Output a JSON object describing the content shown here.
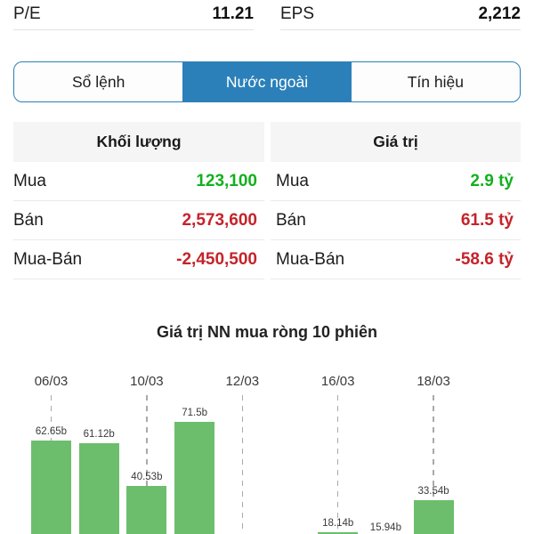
{
  "stats": {
    "pe": {
      "label": "P/E",
      "value": "11.21"
    },
    "eps": {
      "label": "EPS",
      "value": "2,212"
    }
  },
  "tabs": [
    {
      "label": "Sổ lệnh",
      "active": false
    },
    {
      "label": "Nước ngoài",
      "active": true
    },
    {
      "label": "Tín hiệu",
      "active": false
    }
  ],
  "foreign_table": {
    "volume": {
      "header": "Khối lượng",
      "rows": [
        {
          "label": "Mua",
          "value": "123,100",
          "color": "positive"
        },
        {
          "label": "Bán",
          "value": "2,573,600",
          "color": "negative"
        },
        {
          "label": "Mua-Bán",
          "value": "-2,450,500",
          "color": "negative"
        }
      ]
    },
    "value": {
      "header": "Giá trị",
      "rows": [
        {
          "label": "Mua",
          "value": "2.9 tỷ",
          "color": "positive"
        },
        {
          "label": "Bán",
          "value": "61.5 tỷ",
          "color": "negative"
        },
        {
          "label": "Mua-Bán",
          "value": "-58.6 tỷ",
          "color": "negative"
        }
      ]
    }
  },
  "chart_data": {
    "type": "bar",
    "title": "Giá trị NN mua ròng 10 phiên",
    "unit": "b",
    "x_tick_labels": [
      "06/03",
      "10/03",
      "12/03",
      "16/03",
      "18/03"
    ],
    "grid": "vertical-dashed",
    "legend": "none",
    "sessions": [
      {
        "index": 1,
        "tick": "06/03",
        "value": 62.65,
        "label": "62.65b"
      },
      {
        "index": 2,
        "tick": null,
        "value": 61.12,
        "label": "61.12b"
      },
      {
        "index": 3,
        "tick": "10/03",
        "value": 40.53,
        "label": "40.53b"
      },
      {
        "index": 4,
        "tick": null,
        "value": 71.5,
        "label": "71.5b"
      },
      {
        "index": 5,
        "tick": "12/03",
        "value": null,
        "label": null
      },
      {
        "index": 6,
        "tick": null,
        "value": null,
        "label": null
      },
      {
        "index": 7,
        "tick": "16/03",
        "value": 18.14,
        "label": "18.14b"
      },
      {
        "index": 8,
        "tick": null,
        "value": 15.94,
        "label": "15.94b"
      },
      {
        "index": 9,
        "tick": "18/03",
        "value": 33.54,
        "label": "33.54b"
      },
      {
        "index": 10,
        "tick": null,
        "value": null,
        "label": null
      }
    ]
  },
  "colors": {
    "accent": "#2b80b9",
    "positive": "#13b01f",
    "negative": "#c5232a",
    "bar": "#6cbe6d"
  }
}
